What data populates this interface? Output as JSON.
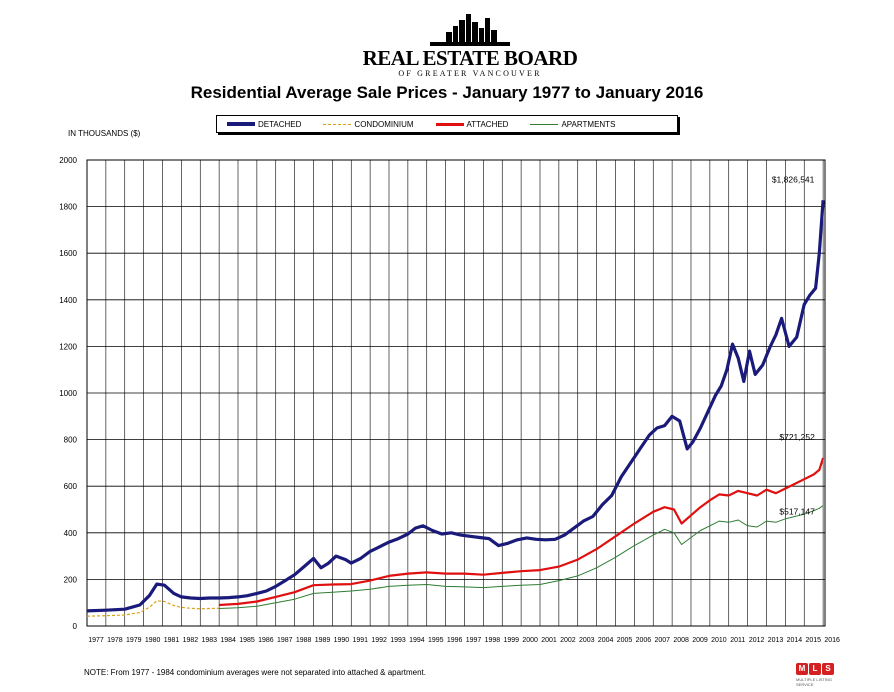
{
  "logo": {
    "name": "REAL ESTATE BOARD",
    "subtitle": "OF GREATER VANCOUVER"
  },
  "title": "Residential Average Sale Prices  -  January 1977 to January 2016",
  "units_label": "IN THOUSANDS ($)",
  "note": "NOTE:  From 1977 - 1984 condominium averages were not separated into attached & apartment.",
  "mls_logo": {
    "letters": [
      "M",
      "L",
      "S"
    ],
    "tagline": "MULTIPLE LISTING SERVICE"
  },
  "colors": {
    "detached": "#1a1a7a",
    "condominium": "#d9a21b",
    "attached": "#e01010",
    "apartments": "#2e7d32",
    "grid": "#000000"
  },
  "chart_data": {
    "type": "line",
    "title": "Residential Average Sale Prices  -  January 1977 to January 2016",
    "ylabel": "IN THOUSANDS ($)",
    "ylim": [
      0,
      2000
    ],
    "yticks": [
      0,
      200,
      400,
      600,
      800,
      1000,
      1200,
      1400,
      1600,
      1800,
      2000
    ],
    "xlim": [
      1977,
      2016.1
    ],
    "xticks": [
      "1977",
      "1978",
      "1979",
      "1980",
      "1981",
      "1982",
      "1983",
      "1984",
      "1985",
      "1986",
      "1987",
      "1988",
      "1989",
      "1990",
      "1991",
      "1992",
      "1993",
      "1994",
      "1995",
      "1996",
      "1997",
      "1998",
      "1999",
      "2000",
      "2001",
      "2002",
      "2003",
      "2004",
      "2005",
      "2006",
      "2007",
      "2008",
      "2009",
      "2010",
      "2011",
      "2012",
      "2013",
      "2014",
      "2015",
      "2016"
    ],
    "grid": true,
    "legend_position": "top-center",
    "series": [
      {
        "name": "DETACHED",
        "style": "solid-thick",
        "x": [
          1977,
          1978,
          1979,
          1979.8,
          1980.3,
          1980.7,
          1981.1,
          1981.6,
          1982,
          1982.5,
          1983,
          1983.5,
          1984,
          1984.5,
          1985,
          1985.5,
          1986,
          1986.5,
          1987,
          1987.5,
          1988,
          1988.5,
          1989,
          1989.4,
          1989.8,
          1990.2,
          1990.7,
          1991,
          1991.5,
          1992,
          1992.5,
          1993,
          1993.5,
          1994,
          1994.4,
          1994.8,
          1995.3,
          1995.8,
          1996.3,
          1996.8,
          1997.3,
          1997.8,
          1998.3,
          1998.8,
          1999.3,
          1999.8,
          2000.3,
          2000.8,
          2001.3,
          2001.8,
          2002.3,
          2002.8,
          2003.3,
          2003.8,
          2004.3,
          2004.8,
          2005.3,
          2005.8,
          2006.3,
          2006.8,
          2007.2,
          2007.6,
          2008,
          2008.4,
          2008.8,
          2009.1,
          2009.5,
          2009.9,
          2010.3,
          2010.6,
          2010.9,
          2011.2,
          2011.5,
          2011.8,
          2012.1,
          2012.4,
          2012.8,
          2013.2,
          2013.5,
          2013.8,
          2014.2,
          2014.6,
          2015.0,
          2015.3,
          2015.6,
          2015.8,
          2016.0
        ],
        "y": [
          65,
          68,
          72,
          90,
          130,
          180,
          175,
          140,
          125,
          120,
          118,
          120,
          120,
          122,
          125,
          130,
          140,
          150,
          170,
          195,
          220,
          255,
          290,
          250,
          270,
          300,
          285,
          270,
          290,
          320,
          340,
          360,
          375,
          395,
          420,
          430,
          410,
          395,
          400,
          390,
          385,
          380,
          375,
          345,
          355,
          370,
          378,
          372,
          370,
          372,
          390,
          420,
          450,
          470,
          520,
          560,
          640,
          700,
          760,
          820,
          850,
          860,
          900,
          880,
          760,
          790,
          850,
          920,
          990,
          1030,
          1100,
          1210,
          1150,
          1050,
          1180,
          1080,
          1120,
          1200,
          1250,
          1320,
          1200,
          1240,
          1380,
          1420,
          1450,
          1600,
          1827
        ]
      },
      {
        "name": "CONDOMINIUM",
        "style": "dashed",
        "x": [
          1977,
          1978,
          1979,
          1979.8,
          1980.3,
          1980.7,
          1981.1,
          1981.6,
          1982,
          1982.5,
          1983,
          1983.5,
          1984
        ],
        "y": [
          42,
          44,
          47,
          58,
          80,
          108,
          105,
          88,
          80,
          76,
          74,
          75,
          76
        ]
      },
      {
        "name": "ATTACHED",
        "style": "solid-medium",
        "x": [
          1984,
          1985,
          1986,
          1987,
          1988,
          1989,
          1990,
          1991,
          1992,
          1993,
          1994,
          1995,
          1996,
          1997,
          1998,
          1999,
          2000,
          2001,
          2002,
          2003,
          2004,
          2005,
          2006,
          2007,
          2007.6,
          2008.1,
          2008.5,
          2009,
          2009.5,
          2010,
          2010.5,
          2011,
          2011.5,
          2012,
          2012.5,
          2013,
          2013.5,
          2014,
          2014.5,
          2015,
          2015.5,
          2015.8,
          2016.0
        ],
        "y": [
          90,
          95,
          105,
          125,
          145,
          175,
          178,
          180,
          195,
          215,
          225,
          230,
          225,
          225,
          220,
          228,
          235,
          240,
          255,
          285,
          330,
          385,
          440,
          490,
          510,
          500,
          440,
          475,
          510,
          540,
          565,
          560,
          580,
          570,
          560,
          585,
          570,
          590,
          610,
          630,
          650,
          670,
          721
        ]
      },
      {
        "name": "APARTMENTS",
        "style": "solid-thin",
        "x": [
          1984,
          1985,
          1986,
          1987,
          1988,
          1989,
          1990,
          1991,
          1992,
          1993,
          1994,
          1995,
          1996,
          1997,
          1998,
          1999,
          2000,
          2001,
          2002,
          2003,
          2004,
          2005,
          2006,
          2007,
          2007.6,
          2008.1,
          2008.5,
          2009,
          2009.5,
          2010,
          2010.5,
          2011,
          2011.5,
          2012,
          2012.5,
          2013,
          2013.5,
          2014,
          2014.5,
          2015,
          2015.5,
          2015.8,
          2016.0
        ],
        "y": [
          75,
          78,
          85,
          100,
          115,
          140,
          145,
          150,
          158,
          170,
          175,
          178,
          170,
          168,
          165,
          170,
          175,
          178,
          195,
          215,
          250,
          295,
          345,
          390,
          415,
          400,
          350,
          380,
          410,
          430,
          450,
          445,
          455,
          430,
          425,
          450,
          445,
          460,
          470,
          480,
          495,
          505,
          517
        ]
      }
    ],
    "annotations": [
      {
        "text": "$1,826,541",
        "x": 2016.0,
        "y": 1827
      },
      {
        "text": "$721,252",
        "x": 2016.0,
        "y": 721
      },
      {
        "text": "$517,147",
        "x": 2016.0,
        "y": 517
      }
    ]
  }
}
